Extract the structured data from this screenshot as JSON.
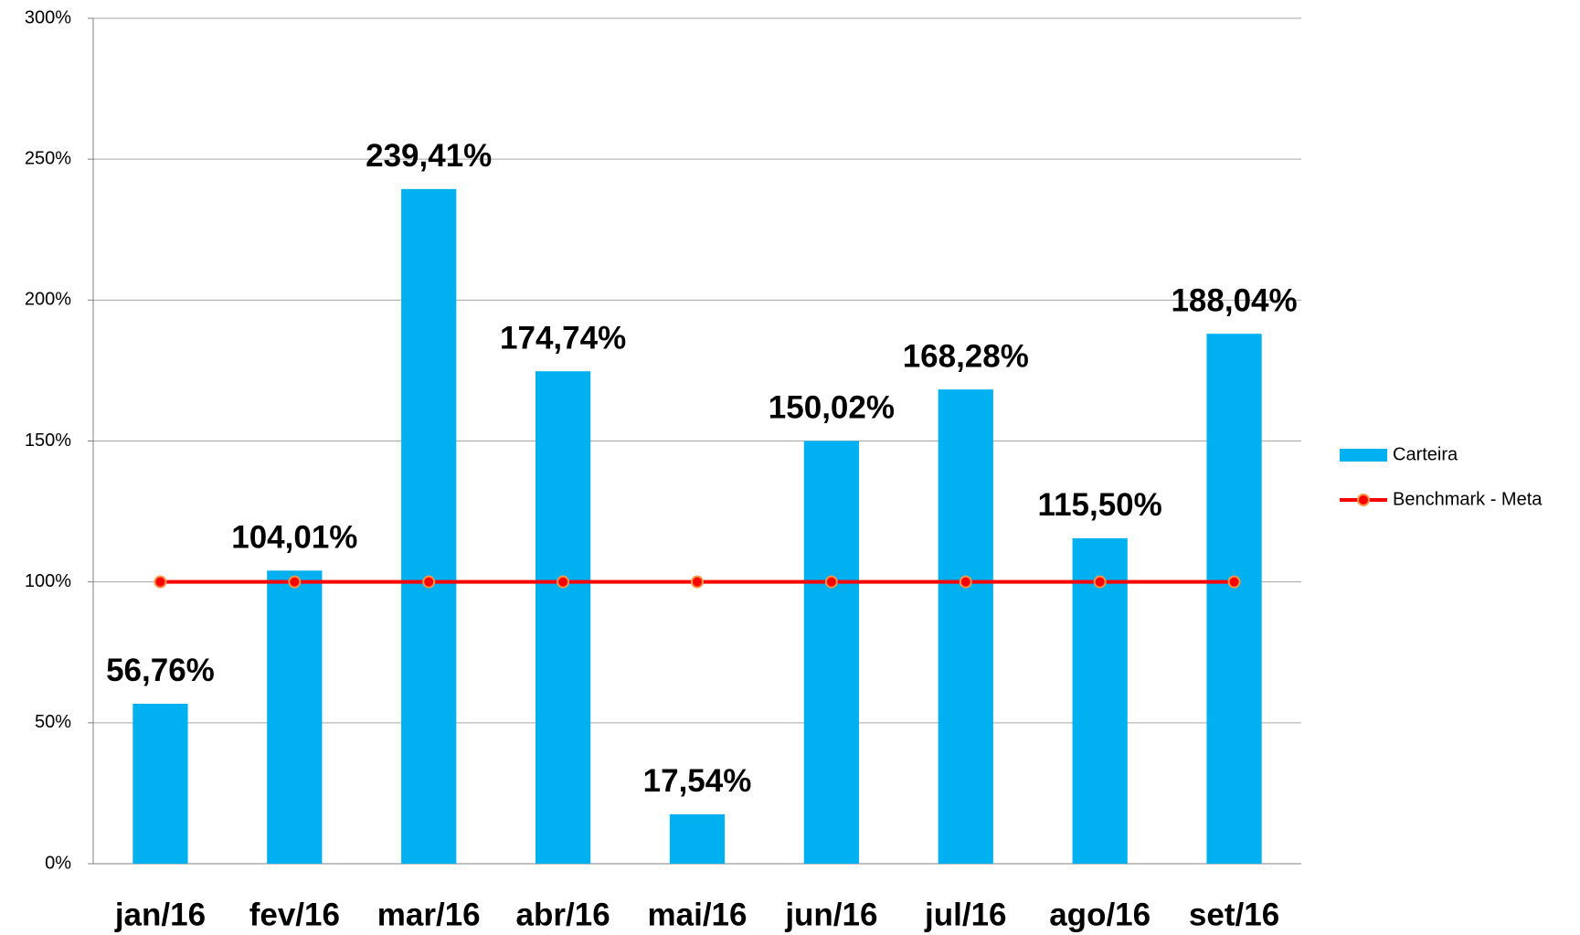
{
  "chart_data": {
    "type": "bar",
    "categories": [
      "jan/16",
      "fev/16",
      "mar/16",
      "abr/16",
      "mai/16",
      "jun/16",
      "jul/16",
      "ago/16",
      "set/16"
    ],
    "series": [
      {
        "name": "Carteira",
        "type": "bar",
        "color": "#00b0f0",
        "values": [
          56.76,
          104.01,
          239.41,
          174.74,
          17.54,
          150.02,
          168.28,
          115.5,
          188.04
        ],
        "value_labels": [
          "56,76%",
          "104,01%",
          "239,41%",
          "174,74%",
          "17,54%",
          "150,02%",
          "168,28%",
          "115,50%",
          "188,04%"
        ]
      },
      {
        "name": "Benchmark - Meta",
        "type": "line",
        "color": "#ff0000",
        "values": [
          100,
          100,
          100,
          100,
          100,
          100,
          100,
          100,
          100
        ]
      }
    ],
    "ylim": [
      0,
      300
    ],
    "yticks": [
      {
        "value": 0,
        "label": "0%"
      },
      {
        "value": 50,
        "label": "50%"
      },
      {
        "value": 100,
        "label": "100%"
      },
      {
        "value": 150,
        "label": "150%"
      },
      {
        "value": 200,
        "label": "200%"
      },
      {
        "value": 250,
        "label": "250%"
      },
      {
        "value": 300,
        "label": "300%"
      }
    ],
    "grid": true,
    "legend": "right"
  }
}
